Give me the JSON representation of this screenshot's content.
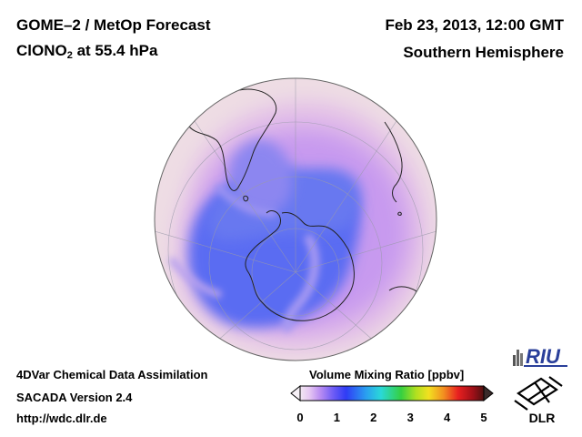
{
  "header": {
    "title_line1": "GOME–2 / MetOp Forecast",
    "species_prefix": "ClONO",
    "species_sub": "2",
    "species_suffix": " at 55.4 hPa",
    "datetime": "Feb 23, 2013, 12:00 GMT",
    "region": "Southern Hemisphere"
  },
  "footer": {
    "line1": "4DVar Chemical Data Assimilation",
    "line2": "SACADA Version 2.4",
    "url": "http://wdc.dlr.de"
  },
  "colorbar": {
    "title": "Volume Mixing Ratio [ppbv]",
    "ticks": [
      "0",
      "1",
      "2",
      "3",
      "4",
      "5"
    ],
    "min": 0,
    "max": 5
  },
  "logos": {
    "riu": "RIU",
    "dlr": "DLR"
  },
  "colors": {
    "high_background": "#eedde4",
    "low_core": "#4d60f0",
    "mid_band": "#b88ef0",
    "coast": "#222222"
  }
}
